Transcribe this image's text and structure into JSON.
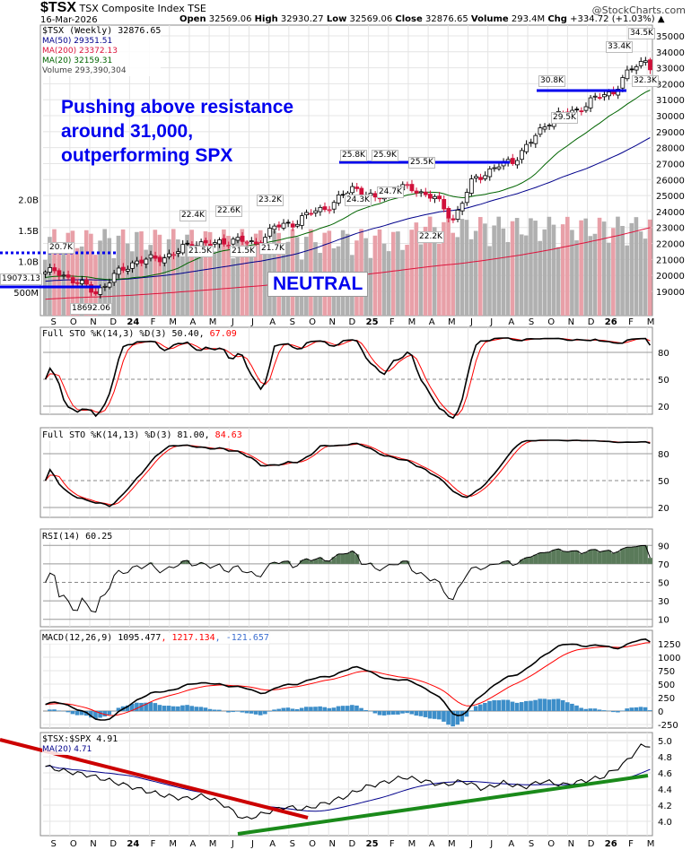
{
  "header": {
    "symbol": "$TSX",
    "name": "TSX Composite Index",
    "exchange": "TSE",
    "date": "16-Mar-2026",
    "open_label": "Open",
    "open": "32569.06",
    "high_label": "High",
    "high": "32930.27",
    "low_label": "Low",
    "low": "32569.06",
    "close_label": "Close",
    "close": "32876.65",
    "volume_label": "Volume",
    "volume": "293.4M",
    "chg_label": "Chg",
    "chg": "+334.72 (+1.03%)",
    "brand": "@StockCharts.com"
  },
  "legend": {
    "price": "$TSX (Weekly) 32876.65",
    "ma50": "MA(50) 29351.51",
    "ma200": "MA(200) 23372.13",
    "ma20": "MA(20) 32159.31",
    "volume": "Volume 293,390,304"
  },
  "annotations": {
    "text1": "Pushing above resistance",
    "text2": "around 31,000,",
    "text3": "outperforming SPX",
    "neutral": "NEUTRAL"
  },
  "price_labels": [
    "20.7K",
    "18692.06",
    "19073.13",
    "22.4K",
    "22.6K",
    "21.5K",
    "21.5K",
    "21.7K",
    "23.2K",
    "25.8K",
    "25.9K",
    "24.3K",
    "24.7K",
    "25.5K",
    "22.2K",
    "30.8K",
    "29.5K",
    "33.4K",
    "34.5K",
    "32.3K"
  ],
  "colors": {
    "ma50": "#00008b",
    "ma200": "#dc143c",
    "ma20": "#006400",
    "down": "#d0103a",
    "vol": "#b0b0b0",
    "volDown": "#e8a0a8",
    "annot": "#0000ee",
    "macdHist": "#3d8ec9",
    "rsiFill": "#5a7a5a"
  },
  "panels": {
    "sto1": "Full STO %K(14,3) %D(3) 50.40,",
    "sto1_d": "67.09",
    "sto2": "Full STO %K(14,13) %D(3) 81.00,",
    "sto2_d": "84.63",
    "rsi": "RSI(14) 60.25",
    "macd": "MACD(12,26,9) 1095.477",
    "macd_sig": ", 1217.134",
    "macd_hist": ", -121.657",
    "ratio": "$TSX:$SPX 4.91",
    "ratio_ma": "MA(20) 4.71"
  },
  "chart_data": {
    "type": "line",
    "title": "$TSX TSX Composite Index (Weekly)",
    "x_tick_labels": [
      "S",
      "O",
      "N",
      "D",
      "24",
      "F",
      "M",
      "A",
      "M",
      "J",
      "J",
      "A",
      "S",
      "O",
      "N",
      "D",
      "25",
      "F",
      "M",
      "A",
      "M",
      "J",
      "J",
      "A",
      "S",
      "O",
      "N",
      "D",
      "26",
      "F",
      "M"
    ],
    "price_axis": [
      19000,
      35000
    ],
    "price_ticks": [
      19000,
      20000,
      21000,
      22000,
      23000,
      24000,
      25000,
      26000,
      27000,
      28000,
      29000,
      30000,
      31000,
      32000,
      33000,
      34000,
      35000
    ],
    "volume_ticks": [
      "500M",
      "1.0B",
      "1.5B",
      "2.0B"
    ],
    "monthly_close_approx": {
      "months": [
        "2023-08",
        "2023-09",
        "2023-10",
        "2023-11",
        "2023-12",
        "2024-01",
        "2024-02",
        "2024-03",
        "2024-04",
        "2024-05",
        "2024-06",
        "2024-07",
        "2024-08",
        "2024-09",
        "2024-10",
        "2024-11",
        "2024-12",
        "2025-01",
        "2025-02",
        "2025-03",
        "2025-04",
        "2025-05",
        "2025-06",
        "2025-07",
        "2025-08",
        "2025-09",
        "2025-10",
        "2025-11",
        "2025-12",
        "2026-01",
        "2026-02",
        "2026-03"
      ],
      "values": [
        20200,
        19700,
        18900,
        20000,
        20900,
        21000,
        21400,
        22100,
        21900,
        22300,
        21900,
        23000,
        23300,
        24000,
        24500,
        25600,
        24700,
        25500,
        25400,
        24900,
        23500,
        26000,
        26700,
        27200,
        28500,
        30000,
        30200,
        31000,
        31500,
        33000,
        33800,
        32880
      ]
    },
    "ratio_monthly_approx": [
      4.68,
      4.62,
      4.58,
      4.52,
      4.45,
      4.38,
      4.32,
      4.28,
      4.32,
      4.2,
      4.02,
      4.1,
      4.18,
      4.15,
      4.22,
      4.3,
      4.42,
      4.48,
      4.55,
      4.5,
      4.45,
      4.5,
      4.4,
      4.48,
      4.42,
      4.5,
      4.45,
      4.5,
      4.55,
      4.7,
      4.95,
      4.91
    ],
    "sto_ticks": [
      20,
      50,
      80
    ],
    "rsi_ticks": [
      10,
      30,
      50,
      70,
      90
    ],
    "macd_ticks": [
      -250,
      0,
      250,
      500,
      750,
      1000,
      1250
    ],
    "ratio_ticks": [
      4.0,
      4.2,
      4.4,
      4.6,
      4.8,
      5.0
    ]
  }
}
